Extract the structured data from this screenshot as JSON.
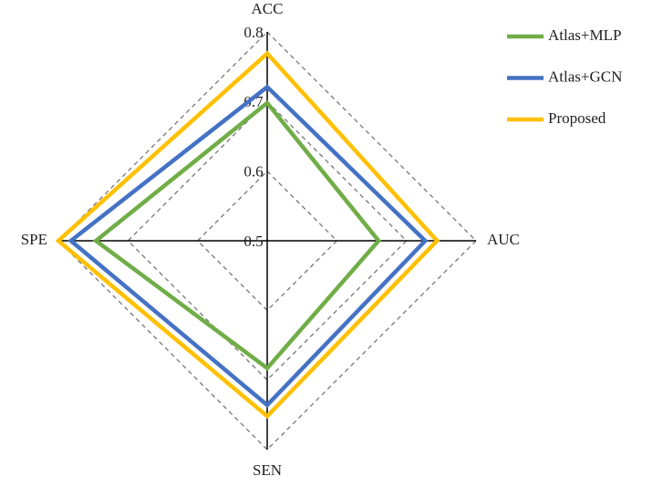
{
  "chart_data": {
    "type": "radar",
    "categories": [
      "ACC",
      "AUC",
      "SEN",
      "SPE"
    ],
    "series": [
      {
        "name": "Atlas+MLP",
        "color": "#70ad47",
        "values": [
          0.698,
          0.66,
          0.683,
          0.746
        ]
      },
      {
        "name": "Atlas+GCN",
        "color": "#4472c4",
        "values": [
          0.721,
          0.727,
          0.736,
          0.782
        ]
      },
      {
        "name": "Proposed",
        "color": "#ffc000",
        "values": [
          0.769,
          0.744,
          0.752,
          0.8
        ]
      }
    ],
    "rlim": [
      0.5,
      0.8
    ],
    "rticks": [
      0.5,
      0.6,
      0.7,
      0.8
    ],
    "grid": true,
    "legend": "top-right"
  }
}
